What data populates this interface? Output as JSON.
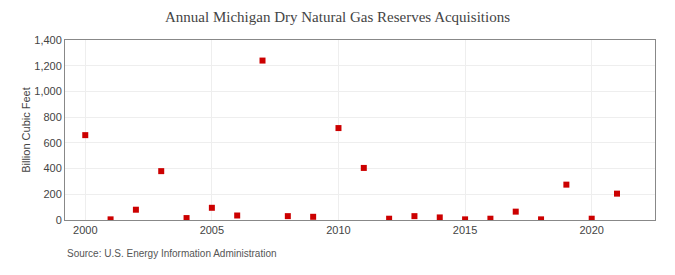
{
  "chart_data": {
    "type": "scatter",
    "title": "Annual Michigan Dry Natural Gas Reserves Acquisitions",
    "y_label": "Billion Cubic Feet",
    "annotations": [
      "Source: U.S. Energy Information Administration"
    ],
    "x": [
      2000,
      2001,
      2002,
      2003,
      2004,
      2005,
      2006,
      2007,
      2008,
      2009,
      2010,
      2011,
      2012,
      2013,
      2014,
      2015,
      2016,
      2017,
      2018,
      2019,
      2020,
      2021
    ],
    "values": [
      660,
      5,
      80,
      380,
      15,
      95,
      35,
      1240,
      30,
      25,
      715,
      405,
      10,
      30,
      20,
      5,
      10,
      65,
      5,
      275,
      10,
      205
    ],
    "color": "#cc0000",
    "marker": "square",
    "xlim": [
      1999.2,
      2022.5
    ],
    "xticks": [
      2000,
      2005,
      2010,
      2015,
      2020
    ],
    "ylim": [
      0,
      1400
    ],
    "yticks": [
      0,
      200,
      400,
      600,
      800,
      {
        "value": 1000,
        "label": "1,000"
      },
      {
        "value": 1200,
        "label": "1,200"
      },
      {
        "value": 1400,
        "label": "1,400"
      }
    ],
    "grid": true
  }
}
